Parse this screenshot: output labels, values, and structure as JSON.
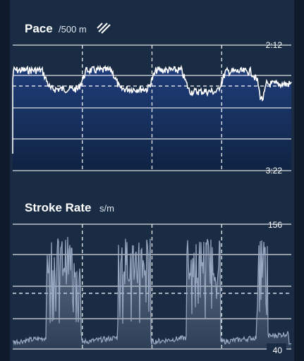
{
  "colors": {
    "background": "#1a2c44",
    "pace_fill_top": "#1f3d7a",
    "pace_fill_bottom": "#0f2342",
    "pace_line": "#ffffff",
    "stroke_fill": "#9aa9c2",
    "grid": "#ffffff"
  },
  "icons": {
    "pace_toggle": "swap-lines-icon"
  },
  "chart_data": [
    {
      "type": "line",
      "title": "Pace",
      "unit": "/500 m",
      "y_tick_labels": [
        "2:12",
        "3:22"
      ],
      "y_top_label": "2:12",
      "y_bottom_label": "3:22",
      "ylim_seconds": [
        132,
        202
      ],
      "grid": true,
      "inverted_y": true,
      "segment_boundaries_fraction": [
        0.25,
        0.5,
        0.75
      ],
      "series_profile": [
        {
          "from": 0.0,
          "to": 0.12,
          "level": 0.2
        },
        {
          "from": 0.12,
          "to": 0.25,
          "level": 0.35
        },
        {
          "from": 0.25,
          "to": 0.37,
          "level": 0.2
        },
        {
          "from": 0.37,
          "to": 0.5,
          "level": 0.35
        },
        {
          "from": 0.5,
          "to": 0.62,
          "level": 0.2
        },
        {
          "from": 0.62,
          "to": 0.75,
          "level": 0.37
        },
        {
          "from": 0.75,
          "to": 0.87,
          "level": 0.21
        },
        {
          "from": 0.87,
          "to": 1.0,
          "level": 0.31
        }
      ]
    },
    {
      "type": "area",
      "title": "Stroke Rate",
      "unit": "s/m",
      "y_tick_labels": [
        "156",
        "40"
      ],
      "y_top_label": "156",
      "y_bottom_label": "40",
      "ylim": [
        40,
        156
      ],
      "grid": true,
      "segment_boundaries_fraction": [
        0.25,
        0.5,
        0.75
      ]
    }
  ]
}
